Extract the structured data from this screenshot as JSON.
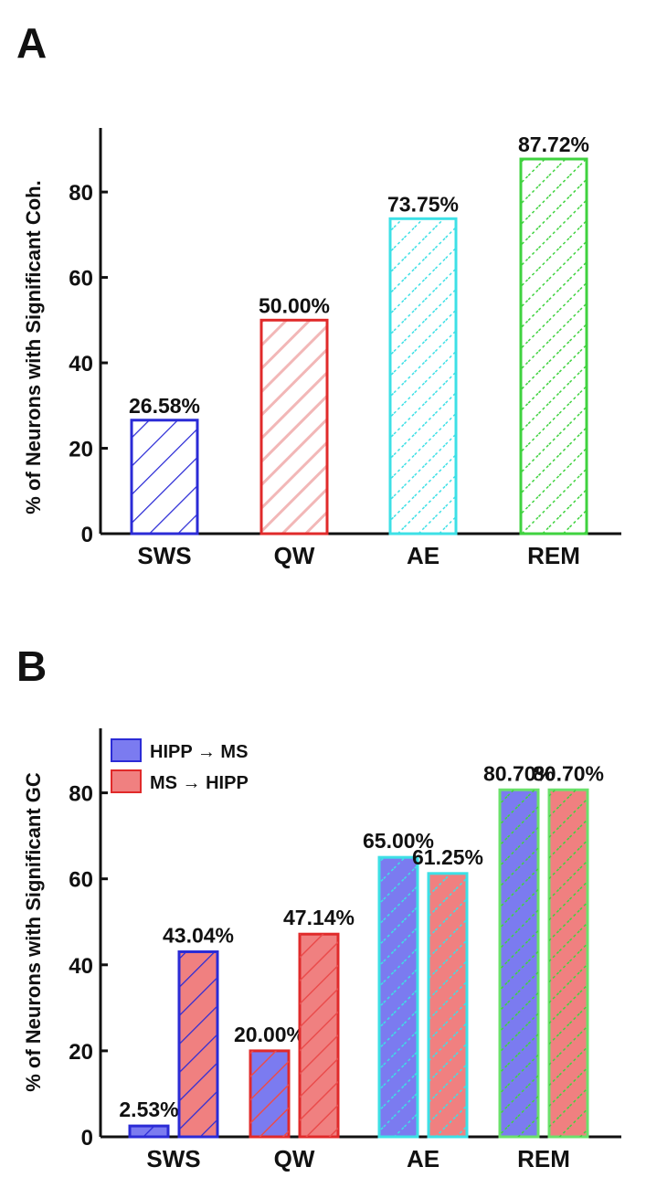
{
  "figure": {
    "colors": {
      "axis": "#111111",
      "blue": "#2b2bd6",
      "blue_fill": "#7b7bf0",
      "red": "#e02a2a",
      "red_fill": "#f08080",
      "pink_hatch": "#f2b7b7",
      "cyan": "#3de0e6",
      "green": "#3fd23f",
      "green_border": "#6be06b"
    }
  },
  "chart_data": [
    {
      "panel": "A",
      "type": "bar",
      "ylabel": "% of Neurons with Significant Coh.",
      "ylim": [
        0,
        95
      ],
      "yticks": [
        0,
        20,
        40,
        60,
        80
      ],
      "categories": [
        "SWS",
        "QW",
        "AE",
        "REM"
      ],
      "values": [
        26.58,
        50.0,
        73.75,
        87.72
      ],
      "labels": [
        "26.58%",
        "50.00%",
        "73.75%",
        "87.72%"
      ]
    },
    {
      "panel": "B",
      "type": "bar",
      "ylabel": "% of Neurons with Significant GC",
      "ylim": [
        0,
        95
      ],
      "yticks": [
        0,
        20,
        40,
        60,
        80
      ],
      "categories": [
        "SWS",
        "QW",
        "AE",
        "REM"
      ],
      "legend_position": "top-left",
      "series": [
        {
          "name": "HIPP → MS",
          "values": [
            2.53,
            20.0,
            65.0,
            80.7
          ],
          "labels": [
            "2.53%",
            "20.00%",
            "65.00%",
            "80.70%"
          ]
        },
        {
          "name": "MS → HIPP",
          "values": [
            43.04,
            47.14,
            61.25,
            80.7
          ],
          "labels": [
            "43.04%",
            "47.14%",
            "61.25%",
            "80.70%"
          ]
        }
      ]
    }
  ]
}
